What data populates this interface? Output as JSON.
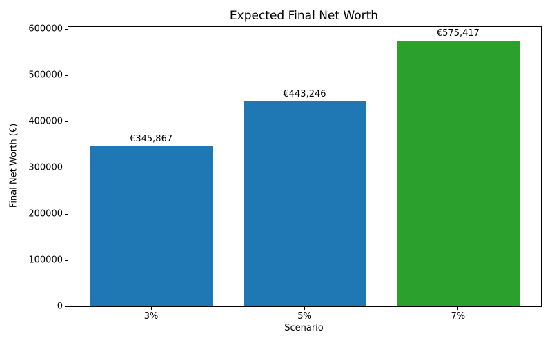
{
  "chart_data": {
    "type": "bar",
    "title": "Expected Final Net Worth",
    "xlabel": "Scenario",
    "ylabel": "Final Net Worth (€)",
    "categories": [
      "3%",
      "5%",
      "7%"
    ],
    "values": [
      345867,
      443246,
      575417
    ],
    "value_labels": [
      "€345,867",
      "€443,246",
      "€575,417"
    ],
    "bar_colors": [
      "#1f77b4",
      "#1f77b4",
      "#2ca02c"
    ],
    "yticks": [
      0,
      100000,
      200000,
      300000,
      400000,
      500000,
      600000
    ],
    "ytick_labels": [
      "0",
      "100000",
      "200000",
      "300000",
      "400000",
      "500000",
      "600000"
    ],
    "ylim": [
      0,
      605000
    ],
    "xlim": [
      -0.54,
      2.54
    ],
    "bar_width": 0.8,
    "grid": false,
    "legend": null,
    "background_color": "#ffffff",
    "spine_color": "#000000"
  }
}
